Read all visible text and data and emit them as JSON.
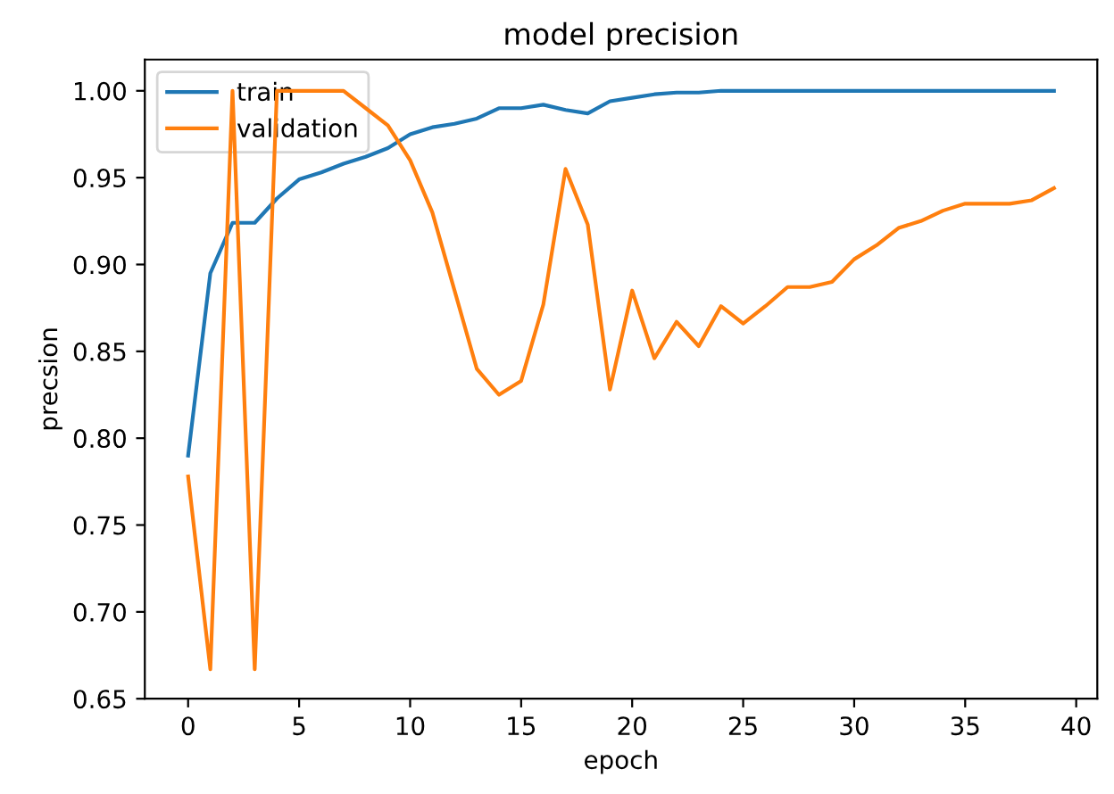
{
  "chart_data": {
    "type": "line",
    "title": "model precision",
    "xlabel": "epoch",
    "ylabel": "precsion",
    "x": [
      0,
      1,
      2,
      3,
      4,
      5,
      6,
      7,
      8,
      9,
      10,
      11,
      12,
      13,
      14,
      15,
      16,
      17,
      18,
      19,
      20,
      21,
      22,
      23,
      24,
      25,
      26,
      27,
      28,
      29,
      30,
      31,
      32,
      33,
      34,
      35,
      36,
      37,
      38,
      39
    ],
    "series": [
      {
        "name": "train",
        "color": "#1f77b4",
        "values": [
          0.79,
          0.895,
          0.924,
          0.924,
          0.938,
          0.949,
          0.953,
          0.958,
          0.962,
          0.967,
          0.975,
          0.979,
          0.981,
          0.984,
          0.99,
          0.99,
          0.992,
          0.989,
          0.987,
          0.994,
          0.996,
          0.998,
          0.999,
          0.999,
          1.0,
          1.0,
          1.0,
          1.0,
          1.0,
          1.0,
          1.0,
          1.0,
          1.0,
          1.0,
          1.0,
          1.0,
          1.0,
          1.0,
          1.0,
          1.0
        ]
      },
      {
        "name": "validation",
        "color": "#ff7f0e",
        "values": [
          0.778,
          0.667,
          1.0,
          0.667,
          1.0,
          1.0,
          1.0,
          1.0,
          0.99,
          0.98,
          0.96,
          0.93,
          0.885,
          0.84,
          0.825,
          0.833,
          0.877,
          0.955,
          0.923,
          0.828,
          0.885,
          0.846,
          0.867,
          0.853,
          0.876,
          0.866,
          0.876,
          0.887,
          0.887,
          0.89,
          0.903,
          0.911,
          0.921,
          0.925,
          0.931,
          0.935,
          0.935,
          0.935,
          0.937,
          0.944
        ]
      }
    ],
    "xlim": [
      -1.95,
      40.95
    ],
    "xticks": [
      0,
      5,
      10,
      15,
      20,
      25,
      30,
      35,
      40
    ],
    "ylim": [
      0.65,
      1.018
    ],
    "yticks": [
      {
        "value": 0.65,
        "label": "0.65"
      },
      {
        "value": 0.7,
        "label": "0.70"
      },
      {
        "value": 0.75,
        "label": "0.75"
      },
      {
        "value": 0.8,
        "label": "0.80"
      },
      {
        "value": 0.85,
        "label": "0.85"
      },
      {
        "value": 0.9,
        "label": "0.90"
      },
      {
        "value": 0.95,
        "label": "0.95"
      },
      {
        "value": 1.0,
        "label": "1.00"
      }
    ],
    "legend": "upper left",
    "grid": false
  }
}
